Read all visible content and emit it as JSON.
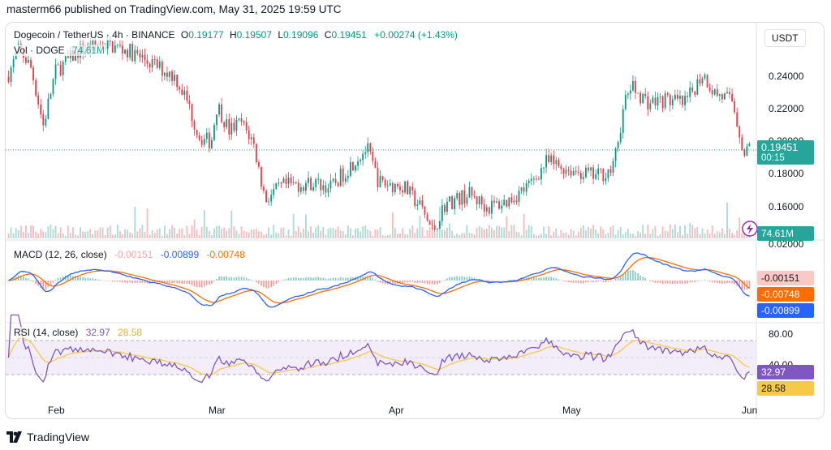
{
  "caption": "masterm66 published on TradingView.com, May 31, 2025 19:59 UTC",
  "footer": {
    "brand": "TradingView",
    "logo_icon": "tradingview-logo-icon"
  },
  "main_pane": {
    "symbol": "Dogecoin / TetherUS · 4h · BINANCE",
    "ohlc": {
      "o_label": "O",
      "o": "0.19177",
      "h_label": "H",
      "h": "0.19507",
      "l_label": "L",
      "l": "0.19096",
      "c_label": "C",
      "c": "0.19451",
      "change": "+0.00274 (+1.43%)"
    },
    "volume_label": "Vol · DOGE",
    "volume_value": "74.61M",
    "currency": "USDT",
    "price_badge": "0.19451",
    "countdown": "00:15",
    "volume_badge": "74.61M",
    "alert_icon": "lightning-alert-icon",
    "colors": {
      "up": "#089981",
      "down": "#f23645",
      "badge": "#26a69a"
    }
  },
  "macd_pane": {
    "label": "MACD (12, 26, close)",
    "hist": "-0.00151",
    "macd": "-0.00899",
    "signal": "-0.00748",
    "badges": {
      "hist": "-0.00151",
      "signal": "-0.00748",
      "macd": "-0.00899"
    },
    "colors": {
      "macd": "#2962ff",
      "signal": "#ff6d00",
      "hist_pos": "#26a69a",
      "hist_neg": "#ef5350"
    }
  },
  "rsi_pane": {
    "label": "RSI (14, close)",
    "rsi": "32.97",
    "ma": "28.58",
    "badges": {
      "rsi": "32.97",
      "ma": "28.58"
    },
    "colors": {
      "rsi": "#7e57c2",
      "ma": "#f7c948",
      "band": "#ede7f6"
    }
  },
  "chart_data": {
    "type": "candlestick",
    "title": "Dogecoin / TetherUS · 4h · BINANCE",
    "ylabel": "USDT",
    "price_ticks": [
      "0.24000",
      "0.22000",
      "0.20000",
      "0.18000",
      "0.16000",
      "0.02000"
    ],
    "rsi_ticks": [
      "80.00",
      "40.00"
    ],
    "x_ticks": [
      "Feb",
      "Mar",
      "Apr",
      "May",
      "Jun"
    ],
    "ylim": [
      0.138,
      0.262
    ],
    "close_path": [
      [
        "Jan 27",
        0.235
      ],
      [
        "Jan 29",
        0.252
      ],
      [
        "Jan 31",
        0.24
      ],
      [
        "Feb 2",
        0.205
      ],
      [
        "Feb 4",
        0.238
      ],
      [
        "Feb 8",
        0.251
      ],
      [
        "Feb 12",
        0.255
      ],
      [
        "Feb 16",
        0.251
      ],
      [
        "Feb 20",
        0.243
      ],
      [
        "Feb 24",
        0.235
      ],
      [
        "Feb 26",
        0.22
      ],
      [
        "Feb 28",
        0.198
      ],
      [
        "Mar 2",
        0.195
      ],
      [
        "Mar 3",
        0.218
      ],
      [
        "Mar 5",
        0.202
      ],
      [
        "Mar 7",
        0.207
      ],
      [
        "Mar 9",
        0.195
      ],
      [
        "Mar 11",
        0.16
      ],
      [
        "Mar 14",
        0.168
      ],
      [
        "Mar 19",
        0.17
      ],
      [
        "Mar 22",
        0.167
      ],
      [
        "Mar 26",
        0.184
      ],
      [
        "Mar 28",
        0.191
      ],
      [
        "Mar 30",
        0.17
      ],
      [
        "Apr 3",
        0.168
      ],
      [
        "Apr 6",
        0.155
      ],
      [
        "Apr 8",
        0.14
      ],
      [
        "Apr 10",
        0.157
      ],
      [
        "Apr 14",
        0.163
      ],
      [
        "Apr 17",
        0.155
      ],
      [
        "Apr 20",
        0.158
      ],
      [
        "Apr 24",
        0.168
      ],
      [
        "Apr 27",
        0.183
      ],
      [
        "Apr 30",
        0.179
      ],
      [
        "May 5",
        0.174
      ],
      [
        "May 8",
        0.178
      ],
      [
        "May 10",
        0.219
      ],
      [
        "May 11",
        0.229
      ],
      [
        "May 14",
        0.219
      ],
      [
        "May 17",
        0.221
      ],
      [
        "May 20",
        0.218
      ],
      [
        "May 23",
        0.237
      ],
      [
        "May 25",
        0.225
      ],
      [
        "May 28",
        0.22
      ],
      [
        "May 30",
        0.186
      ],
      [
        "May 31",
        0.1945
      ]
    ],
    "series": [
      {
        "name": "MACD (12, 26, close)",
        "last": -0.00899
      },
      {
        "name": "RSI (14, close)",
        "last": 32.97
      }
    ]
  }
}
